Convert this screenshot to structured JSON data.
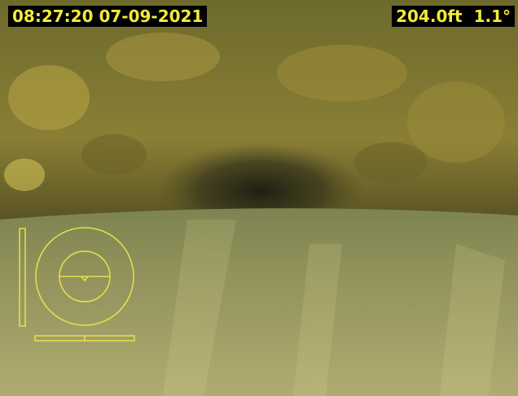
{
  "overlay": {
    "timestamp": "08:27:20 07-09-2021",
    "distance": "204.0ft",
    "incline": "1.1°"
  }
}
